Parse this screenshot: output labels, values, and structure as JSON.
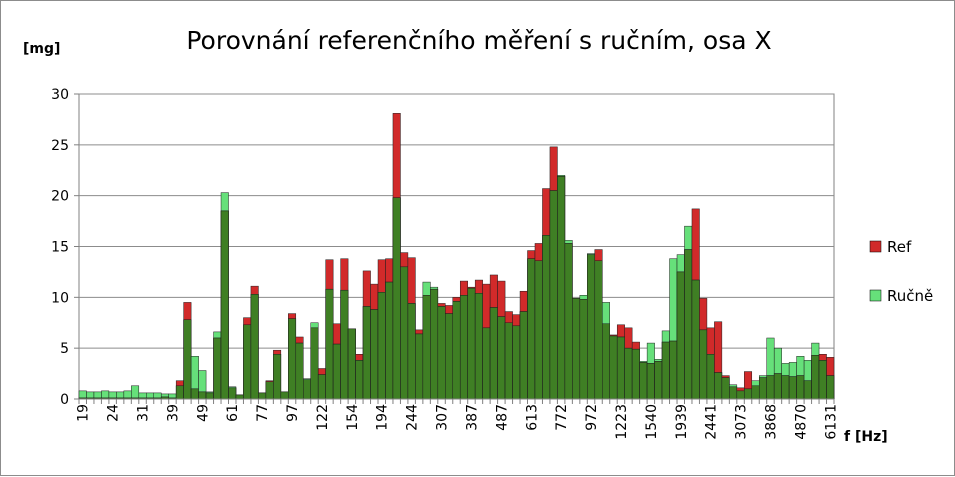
{
  "chart_data": {
    "type": "bar",
    "title": "Porovnání referenčního měření s ručním, osa X",
    "ylabel": "[mg]",
    "xlabel": "f  [Hz]",
    "ylim": [
      0,
      30
    ],
    "yticks": [
      0,
      5,
      10,
      15,
      20,
      25,
      30
    ],
    "grid": "horizontal",
    "legend_position": "right",
    "overlay": true,
    "x_tick_labels": [
      "19",
      "24",
      "31",
      "39",
      "49",
      "61",
      "77",
      "97",
      "122",
      "154",
      "194",
      "244",
      "307",
      "387",
      "487",
      "613",
      "772",
      "972",
      "1223",
      "1540",
      "1939",
      "2441",
      "3073",
      "3868",
      "4870",
      "6131"
    ],
    "series": [
      {
        "name": "Ref",
        "color": "#d12a2a",
        "values": [
          0.1,
          0.1,
          0.1,
          0.1,
          0.1,
          0.1,
          0.1,
          0.1,
          0.1,
          0.1,
          0.1,
          0.2,
          0.1,
          1.8,
          9.5,
          1.0,
          0.7,
          0.6,
          6.0,
          18.5,
          1.1,
          0.4,
          8.0,
          11.1,
          0.6,
          1.8,
          4.8,
          0.7,
          8.4,
          6.1,
          1.9,
          7.0,
          3.0,
          13.7,
          7.4,
          13.8,
          6.9,
          4.4,
          12.6,
          11.3,
          13.7,
          13.8,
          28.1,
          14.4,
          13.9,
          6.8,
          10.2,
          10.8,
          9.4,
          9.2,
          10.0,
          11.6,
          11.0,
          11.7,
          11.3,
          12.2,
          11.6,
          8.6,
          8.3,
          10.6,
          14.6,
          15.3,
          20.7,
          24.8,
          21.9,
          15.3,
          9.9,
          9.8,
          14.2,
          14.7,
          7.4,
          6.3,
          7.3,
          7.0,
          5.6,
          3.6,
          3.5,
          3.7,
          5.6,
          5.7,
          12.5,
          14.7,
          18.7,
          9.9,
          7.0,
          7.6,
          2.3,
          1.2,
          1.1,
          2.7,
          1.3,
          2.1,
          2.3,
          2.5,
          2.3,
          2.2,
          2.3,
          1.8,
          4.3,
          4.4,
          4.1
        ]
      },
      {
        "name": "Ručně",
        "color": "#66e07a",
        "values": [
          0.8,
          0.7,
          0.7,
          0.8,
          0.7,
          0.7,
          0.8,
          1.3,
          0.6,
          0.6,
          0.6,
          0.5,
          0.5,
          1.3,
          7.8,
          4.2,
          2.8,
          0.7,
          6.6,
          20.3,
          1.2,
          0.4,
          7.3,
          10.3,
          0.6,
          1.7,
          4.4,
          0.7,
          7.9,
          5.5,
          2.0,
          7.5,
          2.4,
          10.8,
          5.4,
          10.7,
          6.9,
          3.8,
          9.1,
          8.8,
          10.5,
          11.5,
          19.8,
          13.0,
          9.4,
          6.4,
          11.5,
          11.0,
          9.1,
          8.4,
          9.6,
          10.2,
          10.9,
          10.4,
          7.0,
          9.0,
          8.1,
          7.5,
          7.2,
          8.6,
          13.8,
          13.6,
          16.1,
          20.5,
          22.0,
          15.6,
          9.9,
          10.2,
          14.3,
          13.6,
          9.5,
          6.2,
          6.1,
          5.0,
          4.9,
          3.7,
          5.5,
          3.9,
          6.7,
          13.8,
          14.2,
          17.0,
          11.7,
          6.8,
          4.4,
          2.6,
          2.1,
          1.4,
          0.8,
          1.0,
          1.8,
          2.3,
          6.0,
          5.0,
          3.5,
          3.6,
          4.2,
          3.8,
          5.5,
          3.8,
          2.3
        ]
      }
    ]
  }
}
